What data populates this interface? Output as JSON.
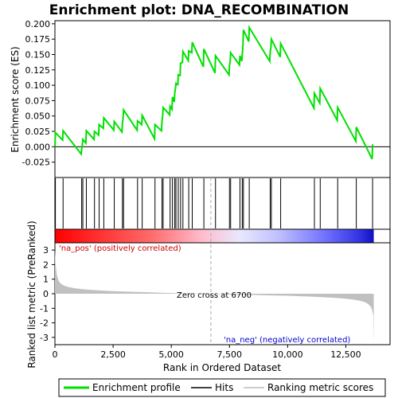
{
  "chart_data": {
    "type": "line",
    "title": "Enrichment plot: DNA_RECOMBINATION",
    "xlabel": "Rank in Ordered Dataset",
    "ylabel_top": "Enrichment score (ES)",
    "ylabel_bottom": "Ranked list metric (PreRanked)",
    "xlim": [
      0,
      14400
    ],
    "es_ylim": [
      -0.05,
      0.205
    ],
    "metric_ylim": [
      -3.5,
      3.5
    ],
    "x_ticks": [
      0,
      2500,
      5000,
      7500,
      10000,
      12500
    ],
    "x_tick_labels": [
      "0",
      "2,500",
      "5,000",
      "7,500",
      "10,000",
      "12,500"
    ],
    "es_ticks": [
      -0.025,
      0.0,
      0.025,
      0.05,
      0.075,
      0.1,
      0.125,
      0.15,
      0.175,
      0.2
    ],
    "es_tick_labels": [
      "-0.025",
      "0.000",
      "0.025",
      "0.050",
      "0.075",
      "0.100",
      "0.125",
      "0.150",
      "0.175",
      "0.200"
    ],
    "metric_ticks": [
      3,
      2,
      1,
      0,
      -1,
      -2,
      -3
    ],
    "metric_tick_labels": [
      "3",
      "2",
      "1",
      "0",
      "-1",
      "-2",
      "-3"
    ],
    "hits": [
      20,
      350,
      1150,
      1200,
      1350,
      1700,
      1900,
      2100,
      2550,
      2900,
      2950,
      3550,
      3750,
      4300,
      4600,
      4650,
      4950,
      5050,
      5150,
      5200,
      5300,
      5400,
      5500,
      5750,
      5900,
      6400,
      6900,
      7500,
      7550,
      7950,
      8050,
      8100,
      8350,
      9250,
      9300,
      9700,
      11150,
      11400,
      12150,
      12950,
      13650
    ],
    "es_series": {
      "name": "Enrichment profile",
      "x": [
        0,
        20,
        330,
        350,
        1130,
        1150,
        1180,
        1200,
        1330,
        1350,
        1680,
        1700,
        1880,
        1900,
        2080,
        2100,
        2530,
        2550,
        2880,
        2900,
        2930,
        2950,
        3530,
        3550,
        3730,
        3750,
        4280,
        4300,
        4580,
        4600,
        4630,
        4650,
        4930,
        4950,
        5030,
        5050,
        5130,
        5150,
        5180,
        5200,
        5280,
        5300,
        5380,
        5400,
        5480,
        5500,
        5730,
        5750,
        5880,
        5900,
        6380,
        6400,
        6880,
        6900,
        7480,
        7500,
        7530,
        7550,
        7930,
        7950,
        8030,
        8050,
        8080,
        8100,
        8330,
        8350,
        9230,
        9250,
        9280,
        9300,
        9680,
        9700,
        11130,
        11150,
        11380,
        11400,
        12130,
        12150,
        12930,
        12950,
        13630,
        13650
      ],
      "y": [
        0.0,
        0.023,
        0.011,
        0.026,
        -0.012,
        -0.004,
        0.003,
        0.012,
        0.006,
        0.026,
        0.012,
        0.025,
        0.019,
        0.036,
        0.03,
        0.047,
        0.027,
        0.041,
        0.024,
        0.038,
        0.046,
        0.06,
        0.027,
        0.042,
        0.036,
        0.051,
        0.013,
        0.036,
        0.026,
        0.042,
        0.05,
        0.064,
        0.052,
        0.066,
        0.061,
        0.081,
        0.073,
        0.088,
        0.095,
        0.103,
        0.101,
        0.117,
        0.116,
        0.136,
        0.137,
        0.155,
        0.14,
        0.156,
        0.153,
        0.17,
        0.13,
        0.159,
        0.12,
        0.148,
        0.117,
        0.132,
        0.139,
        0.153,
        0.133,
        0.148,
        0.139,
        0.15,
        0.165,
        0.19,
        0.171,
        0.194,
        0.139,
        0.154,
        0.161,
        0.175,
        0.146,
        0.168,
        0.063,
        0.087,
        0.071,
        0.095,
        0.043,
        0.064,
        0.009,
        0.032,
        -0.02,
        0.004
      ]
    },
    "metric_series": {
      "name": "Ranking metric scores",
      "x": [
        0,
        30,
        80,
        150,
        250,
        400,
        600,
        900,
        1200,
        1600,
        2000,
        2500,
        3000,
        3500,
        4000,
        4500,
        5000,
        5500,
        6000,
        6500,
        6700,
        7000,
        7500,
        8000,
        8500,
        9000,
        9500,
        10000,
        10500,
        11000,
        11500,
        12000,
        12500,
        12800,
        13000,
        13200,
        13350,
        13450,
        13550,
        13620,
        13680,
        13700
      ],
      "y": [
        3.0,
        2.0,
        1.3,
        0.9,
        0.7,
        0.55,
        0.45,
        0.37,
        0.31,
        0.26,
        0.22,
        0.18,
        0.15,
        0.12,
        0.1,
        0.07,
        0.05,
        0.03,
        0.02,
        0.01,
        0.0,
        -0.02,
        -0.04,
        -0.06,
        -0.08,
        -0.1,
        -0.12,
        -0.14,
        -0.17,
        -0.2,
        -0.24,
        -0.28,
        -0.34,
        -0.4,
        -0.45,
        -0.52,
        -0.6,
        -0.7,
        -0.85,
        -1.05,
        -1.5,
        -3.4
      ]
    },
    "zero_cross_label": "Zero cross at 6700",
    "zero_cross_x": 6700,
    "pos_label": "'na_pos' (positively correlated)",
    "neg_label": "'na_neg' (negatively correlated)",
    "legend": {
      "placement": "bottom",
      "items": [
        {
          "label": "Enrichment profile",
          "color": "#00e000"
        },
        {
          "label": "Hits",
          "color": "#000000"
        },
        {
          "label": "Ranking metric scores",
          "color": "#bbbbbb"
        }
      ]
    },
    "colors": {
      "es_line": "#00e000",
      "hits": "#000000",
      "metric_fill": "#c0c0c0",
      "pos_text": "#cc0000",
      "neg_text": "#0000cc",
      "zero_line": "#aaaaaa"
    },
    "grid": false
  }
}
